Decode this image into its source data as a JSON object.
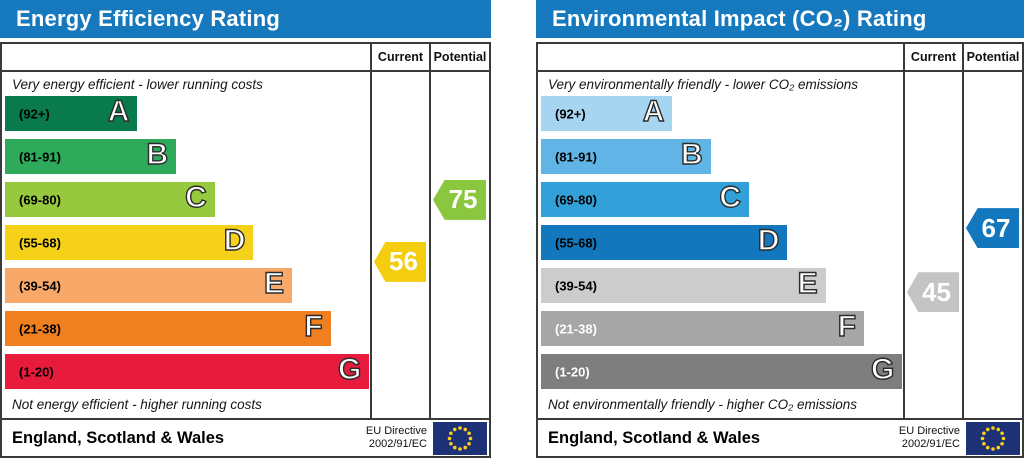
{
  "colors": {
    "header_bg": "#1679be",
    "border": "#3a3a3a",
    "flag_bg": "#1d3176",
    "flag_star": "#fdd018"
  },
  "chart_data": [
    {
      "type": "bar",
      "title": "Energy Efficiency Rating",
      "categories": [
        "A",
        "B",
        "C",
        "D",
        "E",
        "F",
        "G"
      ],
      "band_ranges": [
        "92+",
        "81-91",
        "69-80",
        "55-68",
        "39-54",
        "21-38",
        "1-20"
      ],
      "band_colors": [
        "#087a4c",
        "#2fa95a",
        "#96c93d",
        "#f5d11a",
        "#f8a96a",
        "#f0801f",
        "#e81b3d"
      ],
      "series": [
        {
          "name": "Current",
          "values": [
            56
          ],
          "band": "D"
        },
        {
          "name": "Potential",
          "values": [
            75
          ],
          "band": "C"
        }
      ],
      "ylim": [
        1,
        100
      ],
      "legend_position": "table-columns-right"
    },
    {
      "type": "bar",
      "title": "Environmental Impact (CO₂) Rating",
      "categories": [
        "A",
        "B",
        "C",
        "D",
        "E",
        "F",
        "G"
      ],
      "band_ranges": [
        "92+",
        "81-91",
        "69-80",
        "55-68",
        "39-54",
        "21-38",
        "1-20"
      ],
      "band_colors": [
        "#a6d5f2",
        "#60b5e6",
        "#33a1d9",
        "#1377bd",
        "#cccccc",
        "#a6a6a6",
        "#7e7e7e"
      ],
      "series": [
        {
          "name": "Current",
          "values": [
            45
          ],
          "band": "E"
        },
        {
          "name": "Potential",
          "values": [
            67
          ],
          "band": "D"
        }
      ],
      "ylim": [
        1,
        100
      ],
      "legend_position": "table-columns-right"
    }
  ],
  "panels": [
    {
      "id": "energy",
      "title": "Energy Efficiency Rating",
      "col_current": "Current",
      "col_potential": "Potential",
      "top_note": "Very energy efficient - lower running costs",
      "bottom_note": "Not energy efficient - higher running costs",
      "bands": [
        {
          "letter": "A",
          "label": "(92+)",
          "min": 92,
          "max": 100,
          "color": "#087a4c",
          "label_color": "#000000"
        },
        {
          "letter": "B",
          "label": "(81-91)",
          "min": 81,
          "max": 91,
          "color": "#2fa95a",
          "label_color": "#000000"
        },
        {
          "letter": "C",
          "label": "(69-80)",
          "min": 69,
          "max": 80,
          "color": "#96c93d",
          "label_color": "#000000"
        },
        {
          "letter": "D",
          "label": "(55-68)",
          "min": 55,
          "max": 68,
          "color": "#f5d11a",
          "label_color": "#000000"
        },
        {
          "letter": "E",
          "label": "(39-54)",
          "min": 39,
          "max": 54,
          "color": "#f8a96a",
          "label_color": "#000000"
        },
        {
          "letter": "F",
          "label": "(21-38)",
          "min": 21,
          "max": 38,
          "color": "#f0801f",
          "label_color": "#000000"
        },
        {
          "letter": "G",
          "label": "(1-20)",
          "min": 1,
          "max": 20,
          "color": "#e81b3d",
          "label_color": "#000000"
        }
      ],
      "current": {
        "value": 56,
        "color": "#f3cd0e"
      },
      "potential": {
        "value": 75,
        "color": "#8bc63f"
      },
      "footer_region": "England, Scotland & Wales",
      "directive_line1": "EU Directive",
      "directive_line2": "2002/91/EC"
    },
    {
      "id": "environmental",
      "title": "Environmental Impact (CO₂) Rating",
      "col_current": "Current",
      "col_potential": "Potential",
      "top_note": "Very environmentally friendly - lower CO₂ emissions",
      "bottom_note": "Not environmentally friendly - higher CO₂ emissions",
      "bands": [
        {
          "letter": "A",
          "label": "(92+)",
          "min": 92,
          "max": 100,
          "color": "#a6d5f2",
          "label_color": "#000000"
        },
        {
          "letter": "B",
          "label": "(81-91)",
          "min": 81,
          "max": 91,
          "color": "#60b5e6",
          "label_color": "#000000"
        },
        {
          "letter": "C",
          "label": "(69-80)",
          "min": 69,
          "max": 80,
          "color": "#33a1d9",
          "label_color": "#000000"
        },
        {
          "letter": "D",
          "label": "(55-68)",
          "min": 55,
          "max": 68,
          "color": "#1377bd",
          "label_color": "#000000"
        },
        {
          "letter": "E",
          "label": "(39-54)",
          "min": 39,
          "max": 54,
          "color": "#cccccc",
          "label_color": "#000000"
        },
        {
          "letter": "F",
          "label": "(21-38)",
          "min": 21,
          "max": 38,
          "color": "#a6a6a6",
          "label_color": "#ffffff"
        },
        {
          "letter": "G",
          "label": "(1-20)",
          "min": 1,
          "max": 20,
          "color": "#7e7e7e",
          "label_color": "#ffffff"
        }
      ],
      "current": {
        "value": 45,
        "color": "#c4c4c4"
      },
      "potential": {
        "value": 67,
        "color": "#1377bd"
      },
      "footer_region": "England, Scotland & Wales",
      "directive_line1": "EU Directive",
      "directive_line2": "2002/91/EC"
    }
  ]
}
